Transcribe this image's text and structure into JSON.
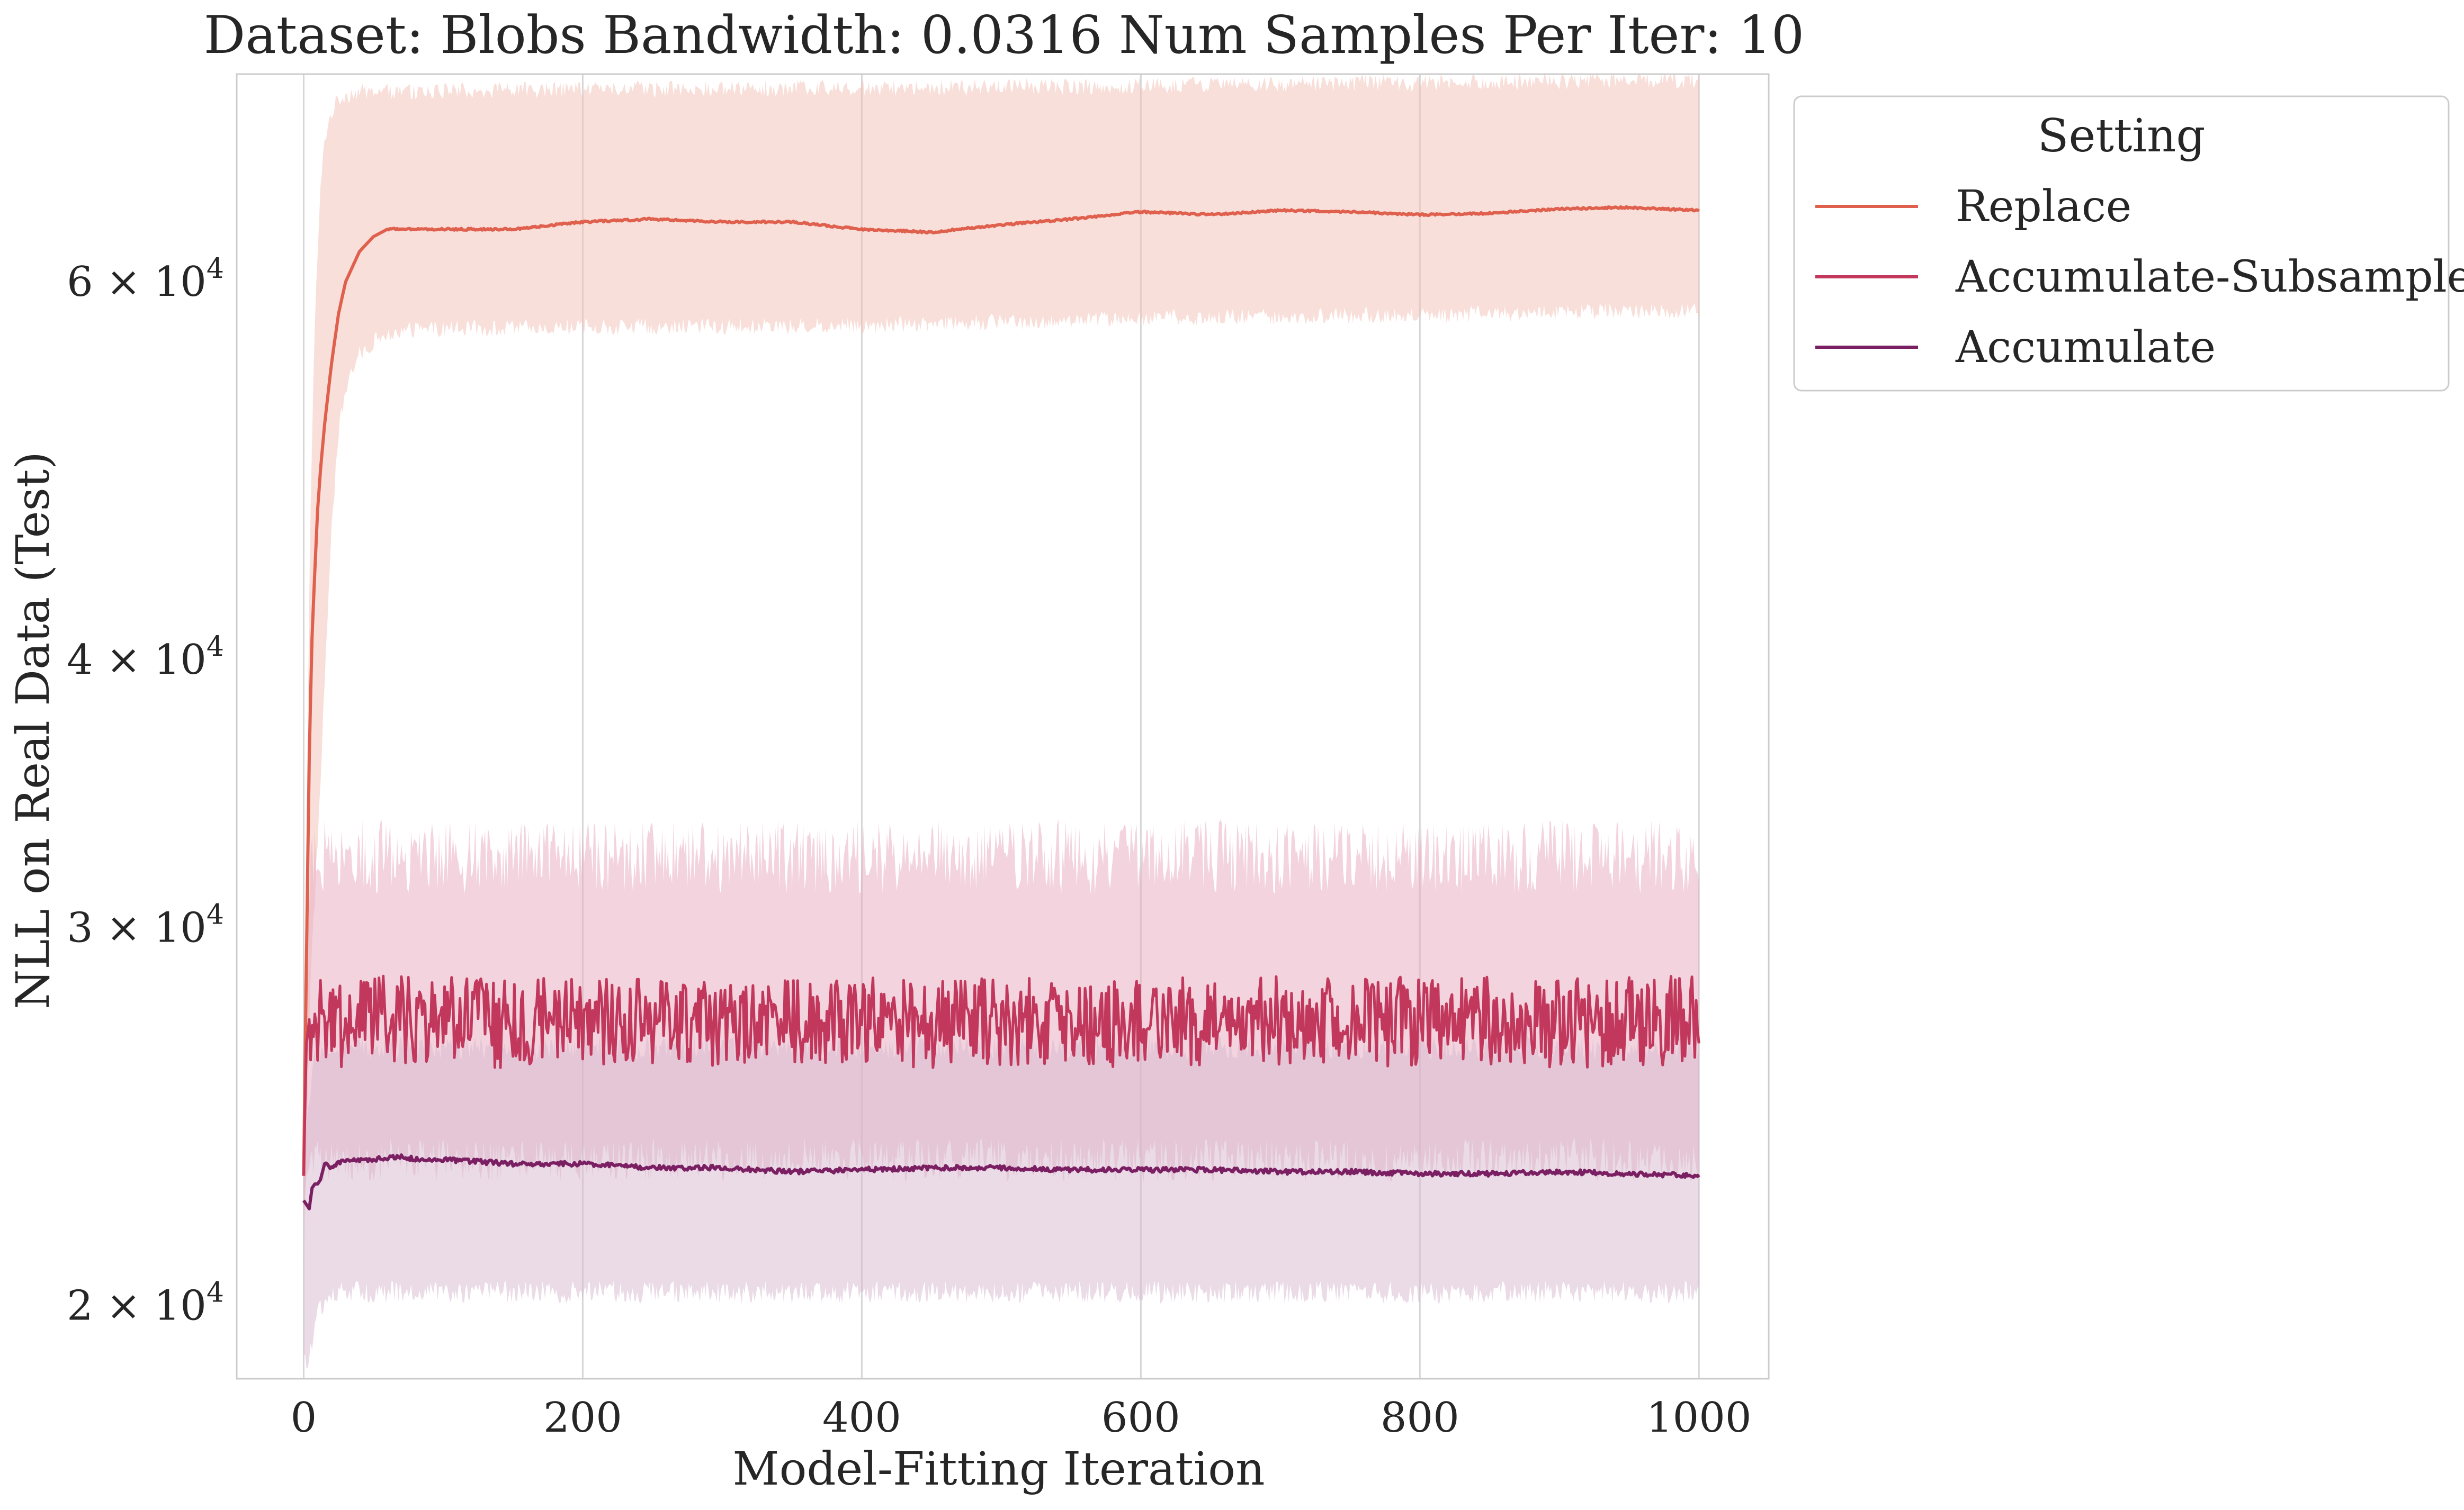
{
  "chart_data": {
    "type": "line",
    "title": "Dataset: Blobs Bandwidth: 0.0316 Num Samples Per Iter: 10",
    "xlabel": "Model-Fitting Iteration",
    "ylabel": "NLL on Real Data (Test)",
    "xlim": [
      -48,
      1050
    ],
    "ylim": [
      18500,
      75000
    ],
    "yscale": "log",
    "x_ticks": [
      {
        "value": 0,
        "label": "0"
      },
      {
        "value": 200,
        "label": "200"
      },
      {
        "value": 400,
        "label": "400"
      },
      {
        "value": 600,
        "label": "600"
      },
      {
        "value": 800,
        "label": "800"
      },
      {
        "value": 1000,
        "label": "1000"
      }
    ],
    "y_ticks": [
      {
        "value": 20000,
        "mant": "2 × 10",
        "exp": "4"
      },
      {
        "value": 30000,
        "mant": "3 × 10",
        "exp": "4"
      },
      {
        "value": 40000,
        "mant": "4 × 10",
        "exp": "4"
      },
      {
        "value": 60000,
        "mant": "6 × 10",
        "exp": "4"
      }
    ],
    "grid": "vertical",
    "legend": {
      "title": "Setting",
      "placement": "outside-right"
    },
    "series": [
      {
        "name": "Replace",
        "color": "#e0604e",
        "band_color": "#f3bfb6",
        "x": [
          0,
          2,
          4,
          6,
          8,
          10,
          12,
          15,
          20,
          25,
          30,
          35,
          40,
          50,
          60,
          70,
          80,
          100,
          150,
          200,
          250,
          300,
          350,
          400,
          450,
          500,
          550,
          600,
          650,
          700,
          750,
          800,
          850,
          900,
          950,
          1000
        ],
        "mean": [
          23000,
          29000,
          36000,
          41000,
          44000,
          47000,
          49000,
          51500,
          55000,
          58000,
          60000,
          61000,
          62000,
          63000,
          63500,
          63500,
          63500,
          63500,
          63500,
          64000,
          64200,
          64000,
          64000,
          63500,
          63300,
          63800,
          64200,
          64700,
          64500,
          64800,
          64700,
          64500,
          64600,
          64900,
          65000,
          64800
        ],
        "lower": [
          21000,
          24000,
          27000,
          29500,
          31000,
          33000,
          35000,
          39000,
          46000,
          51000,
          53500,
          54500,
          55500,
          56300,
          56700,
          56900,
          57000,
          57100,
          57100,
          57200,
          57200,
          57200,
          57200,
          57300,
          57400,
          57500,
          57600,
          57700,
          57800,
          57800,
          57900,
          57900,
          58000,
          58100,
          58200,
          58200
        ],
        "upper": [
          25000,
          33000,
          43000,
          51000,
          57000,
          62000,
          66000,
          70000,
          72000,
          73000,
          73300,
          73500,
          73600,
          73600,
          73600,
          73600,
          73600,
          73700,
          73700,
          73800,
          73800,
          73800,
          73900,
          73900,
          73900,
          74000,
          74000,
          74100,
          74200,
          74200,
          74300,
          74300,
          74400,
          74400,
          74500,
          74500
        ]
      },
      {
        "name": "Accumulate-Subsample",
        "color": "#c2375c",
        "band_color": "#e7aabd",
        "x": [
          0,
          2,
          4,
          6,
          8,
          10,
          20,
          50,
          100,
          150,
          200,
          250,
          300,
          350,
          400,
          450,
          500,
          550,
          600,
          650,
          700,
          750,
          800,
          850,
          900,
          950,
          1000
        ],
        "mean": [
          23000,
          26500,
          27200,
          27000,
          27100,
          27200,
          27100,
          27200,
          27200,
          27100,
          27200,
          27200,
          27100,
          27200,
          27200,
          27100,
          27200,
          27200,
          27100,
          27200,
          27200,
          27100,
          27200,
          27200,
          27100,
          27200,
          27200
        ],
        "noise_amp": 1300,
        "lower": [
          22000,
          23000,
          23200,
          23300,
          23300,
          23400,
          23400,
          23400,
          23400,
          23400,
          23400,
          23400,
          23400,
          23400,
          23400,
          23400,
          23400,
          23400,
          23400,
          23400,
          23400,
          23400,
          23400,
          23400,
          23400,
          23400,
          23400
        ],
        "upper": [
          25000,
          29000,
          30500,
          31000,
          31200,
          31500,
          31500,
          31500,
          31500,
          31500,
          31500,
          31500,
          31500,
          31500,
          31500,
          31500,
          31500,
          31500,
          31500,
          31500,
          31500,
          31500,
          31500,
          31500,
          31500,
          31500,
          31500
        ]
      },
      {
        "name": "Accumulate",
        "color": "#7b1f63",
        "band_color": "#d5b7d0",
        "x": [
          0,
          2,
          4,
          6,
          8,
          10,
          12,
          15,
          20,
          30,
          40,
          50,
          70,
          80,
          100,
          150,
          200,
          250,
          300,
          350,
          400,
          450,
          500,
          550,
          600,
          650,
          700,
          750,
          800,
          850,
          900,
          950,
          1000
        ],
        "mean": [
          22400,
          22300,
          22200,
          22700,
          22800,
          22800,
          22900,
          23300,
          23200,
          23400,
          23400,
          23400,
          23500,
          23400,
          23400,
          23300,
          23300,
          23200,
          23200,
          23100,
          23150,
          23200,
          23200,
          23150,
          23150,
          23150,
          23100,
          23100,
          23050,
          23050,
          23100,
          23050,
          23000
        ],
        "lower": [
          19000,
          18800,
          18800,
          19200,
          19500,
          19800,
          20000,
          20100,
          20200,
          20300,
          20300,
          20300,
          20300,
          20300,
          20300,
          20300,
          20300,
          20300,
          20300,
          20300,
          20300,
          20300,
          20300,
          20300,
          20300,
          20300,
          20300,
          20300,
          20300,
          20300,
          20300,
          20300,
          20300
        ],
        "upper": [
          24000,
          24500,
          25000,
          25500,
          26000,
          26200,
          26300,
          26400,
          26400,
          26400,
          26400,
          26400,
          26400,
          26400,
          26400,
          26400,
          26400,
          26400,
          26400,
          26400,
          26400,
          26400,
          26400,
          26400,
          26400,
          26400,
          26400,
          26400,
          26400,
          26400,
          26400,
          26400,
          26400
        ]
      }
    ]
  }
}
